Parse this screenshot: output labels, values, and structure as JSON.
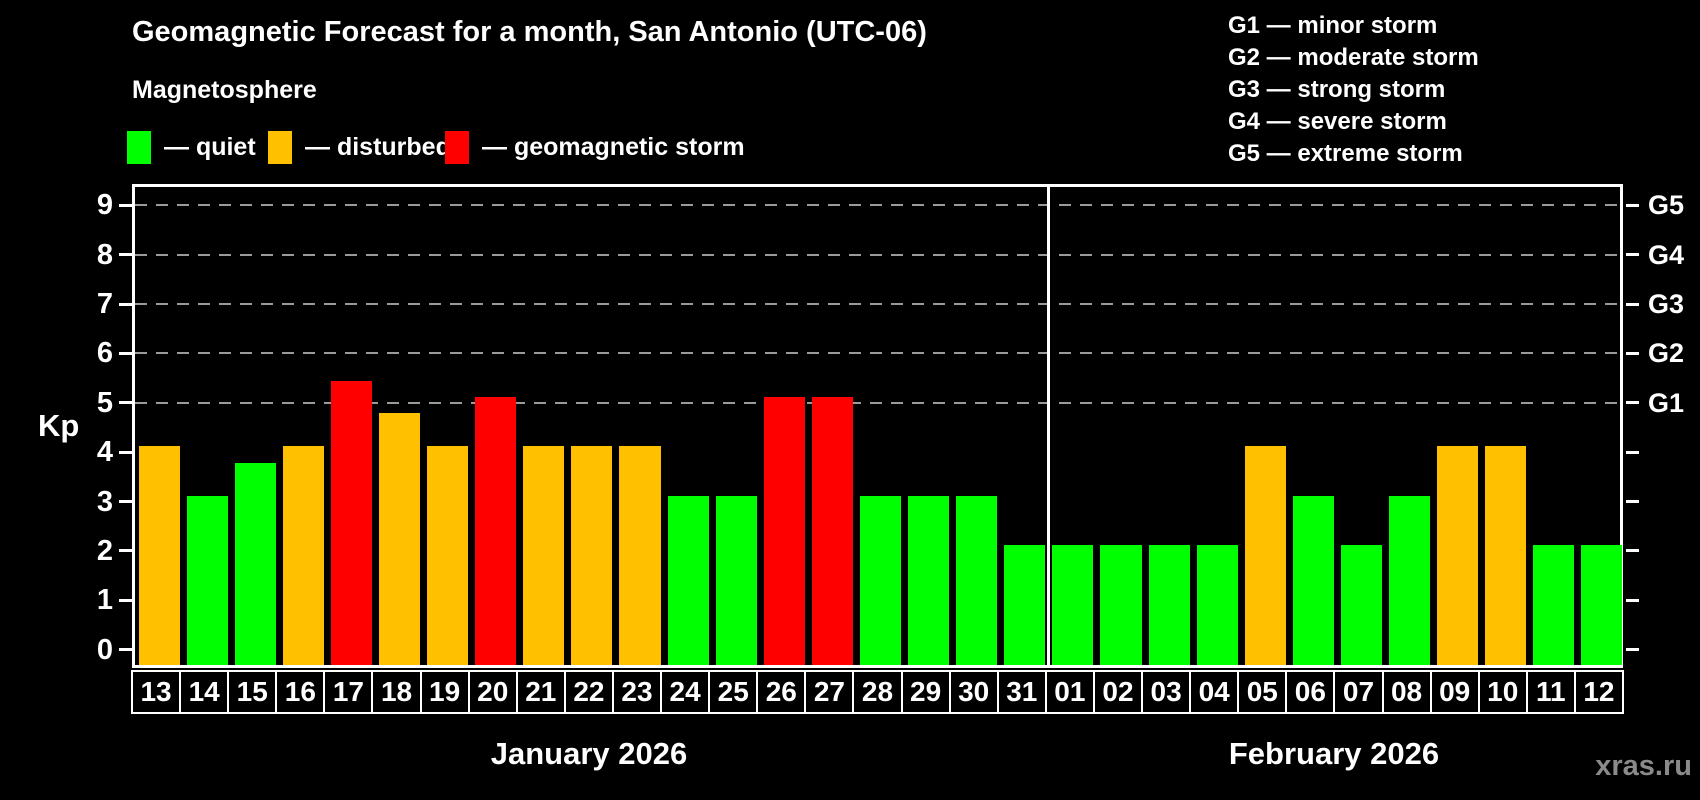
{
  "title": "Geomagnetic Forecast for a month, San Antonio (UTC-06)",
  "subtitle": "Magnetosphere",
  "legend": {
    "items": [
      {
        "key": "quiet",
        "label": "— quiet",
        "color": "#00ff00"
      },
      {
        "key": "disturbed",
        "label": "— disturbed",
        "color": "#ffc000"
      },
      {
        "key": "storm",
        "label": "— geomagnetic storm",
        "color": "#ff0000"
      }
    ]
  },
  "g_legend": {
    "items": [
      "G1 — minor storm",
      "G2 — moderate storm",
      "G3 — strong storm",
      "G4 — severe storm",
      "G5 — extreme storm"
    ]
  },
  "watermark": "xras.ru",
  "chart_data": {
    "type": "bar",
    "title": "Geomagnetic Forecast for a month, San Antonio (UTC-06)",
    "ylabel": "Kp",
    "ylim": [
      0,
      9
    ],
    "y_ticks": [
      0,
      1,
      2,
      3,
      4,
      5,
      6,
      7,
      8,
      9
    ],
    "grid_levels": [
      5,
      6,
      7,
      8,
      9
    ],
    "grid_on": true,
    "right_axis_labels": {
      "5": "G1",
      "6": "G2",
      "7": "G3",
      "8": "G4",
      "9": "G5"
    },
    "status_colors": {
      "quiet": "#00ff00",
      "disturbed": "#ffc000",
      "storm": "#ff0000"
    },
    "legend_position": "top-left",
    "months": [
      {
        "name": "January 2026",
        "days": [
          {
            "day": "13",
            "kp": 4,
            "status": "disturbed"
          },
          {
            "day": "14",
            "kp": 3,
            "status": "quiet"
          },
          {
            "day": "15",
            "kp": 3.67,
            "status": "quiet"
          },
          {
            "day": "16",
            "kp": 4,
            "status": "disturbed"
          },
          {
            "day": "17",
            "kp": 5.33,
            "status": "storm"
          },
          {
            "day": "18",
            "kp": 4.67,
            "status": "disturbed"
          },
          {
            "day": "19",
            "kp": 4,
            "status": "disturbed"
          },
          {
            "day": "20",
            "kp": 5,
            "status": "storm"
          },
          {
            "day": "21",
            "kp": 4,
            "status": "disturbed"
          },
          {
            "day": "22",
            "kp": 4,
            "status": "disturbed"
          },
          {
            "day": "23",
            "kp": 4,
            "status": "disturbed"
          },
          {
            "day": "24",
            "kp": 3,
            "status": "quiet"
          },
          {
            "day": "25",
            "kp": 3,
            "status": "quiet"
          },
          {
            "day": "26",
            "kp": 5,
            "status": "storm"
          },
          {
            "day": "27",
            "kp": 5,
            "status": "storm"
          },
          {
            "day": "28",
            "kp": 3,
            "status": "quiet"
          },
          {
            "day": "29",
            "kp": 3,
            "status": "quiet"
          },
          {
            "day": "30",
            "kp": 3,
            "status": "quiet"
          },
          {
            "day": "31",
            "kp": 2,
            "status": "quiet"
          }
        ]
      },
      {
        "name": "February 2026",
        "days": [
          {
            "day": "01",
            "kp": 2,
            "status": "quiet"
          },
          {
            "day": "02",
            "kp": 2,
            "status": "quiet"
          },
          {
            "day": "03",
            "kp": 2,
            "status": "quiet"
          },
          {
            "day": "04",
            "kp": 2,
            "status": "quiet"
          },
          {
            "day": "05",
            "kp": 4,
            "status": "disturbed"
          },
          {
            "day": "06",
            "kp": 3,
            "status": "quiet"
          },
          {
            "day": "07",
            "kp": 2,
            "status": "quiet"
          },
          {
            "day": "08",
            "kp": 3,
            "status": "quiet"
          },
          {
            "day": "09",
            "kp": 4,
            "status": "disturbed"
          },
          {
            "day": "10",
            "kp": 4,
            "status": "disturbed"
          },
          {
            "day": "11",
            "kp": 2,
            "status": "quiet"
          },
          {
            "day": "12",
            "kp": 2,
            "status": "quiet"
          }
        ]
      }
    ]
  }
}
